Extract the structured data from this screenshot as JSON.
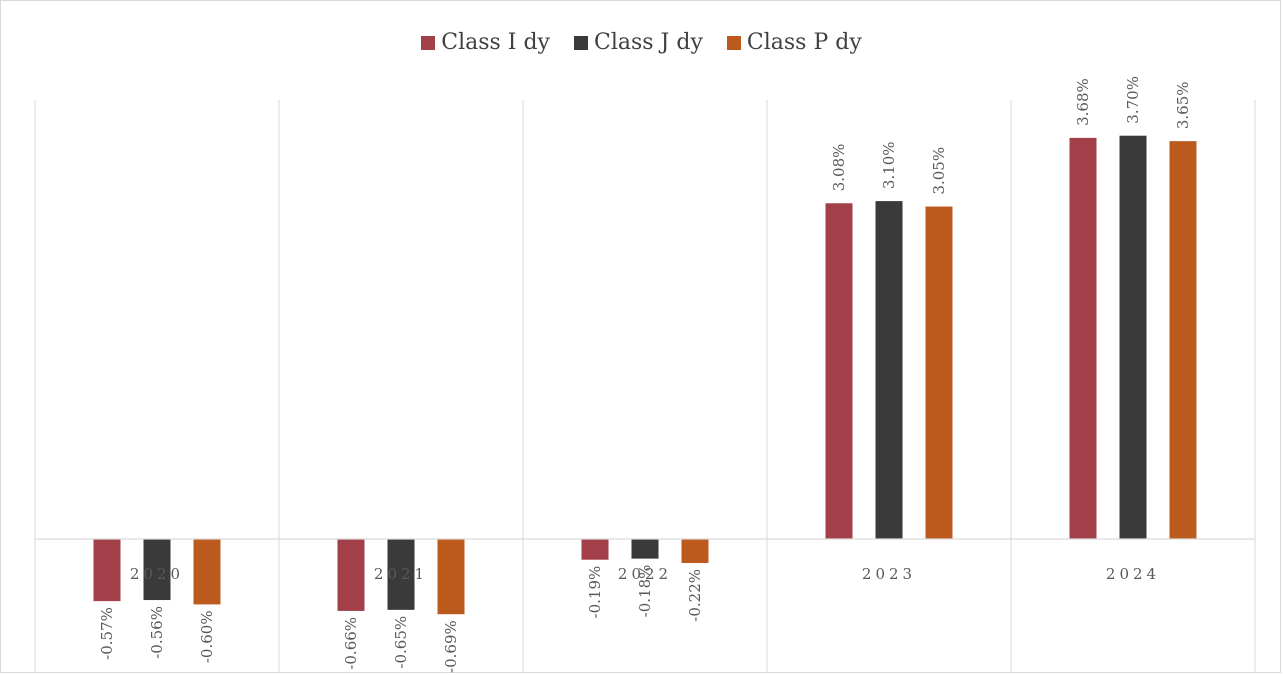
{
  "chart_data": {
    "type": "bar",
    "categories": [
      "2020",
      "2021",
      "2022",
      "2023",
      "2024"
    ],
    "series": [
      {
        "name": "Class I dy",
        "color": "#a23f49",
        "values": [
          -0.57,
          -0.66,
          -0.19,
          3.08,
          3.68
        ],
        "labels": [
          "-0.57%",
          "-0.66%",
          "-0.19%",
          "3.08%",
          "3.68%"
        ]
      },
      {
        "name": "Class J dy",
        "color": "#3a3a3a",
        "values": [
          -0.56,
          -0.65,
          -0.18,
          3.1,
          3.7
        ],
        "labels": [
          "-0.56%",
          "-0.65%",
          "-0.18%",
          "3.10%",
          "3.70%"
        ]
      },
      {
        "name": "Class P dy",
        "color": "#bc5a1e",
        "values": [
          -0.6,
          -0.69,
          -0.22,
          3.05,
          3.65
        ],
        "labels": [
          "-0.60%",
          "-0.69%",
          "-0.22%",
          "3.05%",
          "3.65%"
        ]
      }
    ],
    "ylim": [
      -1.0,
      3.8
    ],
    "unit": "%",
    "grid": "vertical category separators",
    "legend_position": "top"
  }
}
